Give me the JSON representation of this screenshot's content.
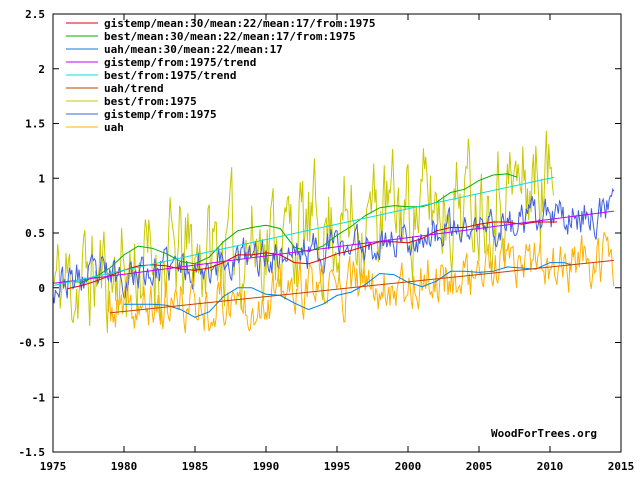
{
  "chart_data": {
    "type": "line",
    "title": "",
    "xlabel": "",
    "ylabel": "",
    "xlim": [
      1975,
      2015
    ],
    "ylim": [
      -1.5,
      2.5
    ],
    "x_ticks": [
      "1975",
      "1980",
      "1985",
      "1990",
      "1995",
      "2000",
      "2005",
      "2010",
      "2015"
    ],
    "y_ticks": [
      "2.5",
      "2",
      "1.5",
      "1",
      "0.5",
      "0",
      "-0.5",
      "-1",
      "-1.5"
    ],
    "grid": false,
    "legend_position": "top-left",
    "credit": "WoodForTrees.org",
    "series": [
      {
        "name": "gistemp/mean:30/mean:22/mean:17/from:1975",
        "color": "#e00000",
        "kind": "smooth",
        "x": [
          1976.0,
          1977.0,
          1978.0,
          1979.0,
          1980.0,
          1981.0,
          1982.0,
          1983.0,
          1984.0,
          1985.0,
          1986.0,
          1987.0,
          1988.0,
          1989.0,
          1990.0,
          1991.0,
          1992.0,
          1993.0,
          1994.0,
          1995.0,
          1996.0,
          1997.0,
          1998.0,
          1999.0,
          2000.0,
          2001.0,
          2002.0,
          2003.0,
          2004.0,
          2005.0,
          2006.0,
          2007.0,
          2008.0,
          2009.0,
          2010.5
        ],
        "y": [
          -0.01,
          0.02,
          0.06,
          0.11,
          0.16,
          0.2,
          0.21,
          0.2,
          0.17,
          0.16,
          0.18,
          0.23,
          0.3,
          0.3,
          0.32,
          0.3,
          0.23,
          0.22,
          0.26,
          0.31,
          0.34,
          0.38,
          0.42,
          0.42,
          0.41,
          0.45,
          0.52,
          0.55,
          0.55,
          0.58,
          0.6,
          0.6,
          0.58,
          0.6,
          0.6
        ]
      },
      {
        "name": "best/mean:30/mean:22/mean:17/from:1975",
        "color": "#00b000",
        "kind": "smooth",
        "x": [
          1976.0,
          1977.0,
          1978.0,
          1979.0,
          1980.0,
          1981.0,
          1982.0,
          1983.0,
          1984.0,
          1985.0,
          1986.0,
          1987.0,
          1988.0,
          1989.0,
          1990.0,
          1991.0,
          1992.0,
          1993.0,
          1994.0,
          1995.0,
          1996.0,
          1997.0,
          1998.0,
          1999.0,
          2000.0,
          2001.0,
          2002.0,
          2003.0,
          2004.0,
          2005.0,
          2006.0,
          2007.0,
          2007.7
        ],
        "y": [
          0.06,
          0.05,
          0.1,
          0.18,
          0.3,
          0.38,
          0.36,
          0.31,
          0.24,
          0.22,
          0.28,
          0.42,
          0.52,
          0.55,
          0.57,
          0.54,
          0.37,
          0.33,
          0.38,
          0.48,
          0.56,
          0.66,
          0.73,
          0.75,
          0.74,
          0.74,
          0.78,
          0.87,
          0.9,
          0.98,
          1.03,
          1.04,
          1.01
        ]
      },
      {
        "name": "uah/mean:30/mean:22/mean:17",
        "color": "#0080e0",
        "kind": "smooth",
        "x": [
          1980.0,
          1981.0,
          1982.0,
          1983.0,
          1984.0,
          1985.0,
          1986.0,
          1987.0,
          1988.0,
          1989.0,
          1990.0,
          1991.0,
          1992.0,
          1993.0,
          1994.0,
          1995.0,
          1996.0,
          1997.0,
          1998.0,
          1999.0,
          2000.0,
          2001.0,
          2002.0,
          2003.0,
          2004.0,
          2005.0,
          2006.0,
          2007.0,
          2008.0,
          2009.0,
          2010.0,
          2011.0,
          2011.5
        ],
        "y": [
          -0.15,
          -0.15,
          -0.15,
          -0.16,
          -0.2,
          -0.27,
          -0.22,
          -0.08,
          0.0,
          0.0,
          -0.06,
          -0.07,
          -0.14,
          -0.2,
          -0.15,
          -0.07,
          -0.04,
          0.03,
          0.13,
          0.12,
          0.05,
          0.01,
          0.06,
          0.15,
          0.15,
          0.14,
          0.15,
          0.19,
          0.18,
          0.17,
          0.23,
          0.23,
          0.21
        ]
      },
      {
        "name": "gistemp/from:1975/trend",
        "color": "#c000ff",
        "kind": "trend",
        "x": [
          1975.0,
          2014.5
        ],
        "y": [
          0.04,
          0.7
        ]
      },
      {
        "name": "best/from:1975/trend",
        "color": "#00e0e0",
        "kind": "trend",
        "x": [
          1975.0,
          2010.3
        ],
        "y": [
          0.02,
          1.01
        ]
      },
      {
        "name": "uah/trend",
        "color": "#c04000",
        "kind": "trend",
        "x": [
          1979.0,
          2014.5
        ],
        "y": [
          -0.23,
          0.25
        ]
      },
      {
        "name": "best/from:1975",
        "color": "#c8c800",
        "kind": "monthly",
        "start": 1975.0,
        "end": 2010.3,
        "baseline": "best/from:1975/trend",
        "noise": 0.42,
        "seed": 11
      },
      {
        "name": "gistemp/from:1975",
        "color": "#4060e0",
        "kind": "monthly",
        "start": 1975.0,
        "end": 2014.5,
        "baseline": "gistemp/from:1975/trend",
        "noise": 0.14,
        "seed": 23
      },
      {
        "name": "uah",
        "color": "#ffb000",
        "kind": "monthly",
        "start": 1978.9,
        "end": 2014.5,
        "baseline": "uah/trend",
        "noise": 0.2,
        "seed": 37
      }
    ],
    "legend_order": [
      "gistemp/mean:30/mean:22/mean:17/from:1975",
      "best/mean:30/mean:22/mean:17/from:1975",
      "uah/mean:30/mean:22/mean:17",
      "gistemp/from:1975/trend",
      "best/from:1975/trend",
      "uah/trend",
      "best/from:1975",
      "gistemp/from:1975",
      "uah"
    ],
    "draw_order": [
      "best/from:1975",
      "gistemp/from:1975",
      "uah",
      "gistemp/mean:30/mean:22/mean:17/from:1975",
      "best/mean:30/mean:22/mean:17/from:1975",
      "uah/mean:30/mean:22/mean:17",
      "gistemp/from:1975/trend",
      "best/from:1975/trend",
      "uah/trend"
    ]
  }
}
